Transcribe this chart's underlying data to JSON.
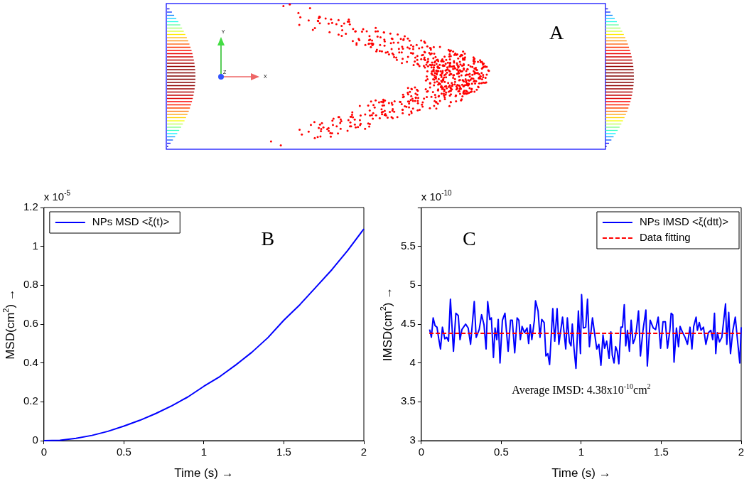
{
  "chart_data": [
    {
      "type": "other",
      "annotations": [
        "A",
        "Y",
        "X",
        "Z"
      ]
    },
    {
      "type": "line",
      "xlabel": "Time (s) →",
      "ylabel": "MSD(cm$^{2}$) →",
      "annotations": [
        "x 10$^{-5}$",
        "B"
      ],
      "xlim": [
        0,
        2
      ],
      "xticks": [
        0,
        0.5,
        1,
        1.5,
        2
      ],
      "ylim": [
        0,
        1.2
      ],
      "yticks": [
        0,
        0.2,
        0.4,
        0.6,
        0.8,
        1,
        1.2
      ],
      "grid": false,
      "legend": "top left",
      "marker": "none",
      "series": [
        {
          "name": "NPs MSD <ξ(t)>",
          "color": "#0000ff",
          "line_style": "solid",
          "x": [
            0,
            0.1,
            0.2,
            0.3,
            0.4,
            0.5,
            0.6,
            0.7,
            0.8,
            0.9,
            1,
            1.1,
            1.2,
            1.3,
            1.4,
            1.5,
            1.6,
            1.7,
            1.8,
            1.9,
            2
          ],
          "values": [
            0,
            0.002,
            0.012,
            0.027,
            0.048,
            0.075,
            0.105,
            0.14,
            0.18,
            0.225,
            0.28,
            0.33,
            0.39,
            0.455,
            0.53,
            0.62,
            0.7,
            0.79,
            0.88,
            0.98,
            1.09
          ]
        }
      ]
    },
    {
      "type": "line",
      "xlabel": "Time (s) →",
      "ylabel": "IMSD(cm$^{2}$) →",
      "annotations": [
        "x 10$^{-10}$",
        "C",
        "Average IMSD: 4.38x10$^{-10}$cm$^{2}$"
      ],
      "xlim": [
        0,
        2
      ],
      "xticks": [
        0,
        0.5,
        1,
        1.5,
        2
      ],
      "ylim": [
        3,
        6
      ],
      "yticks": [
        3,
        3.5,
        4,
        4.5,
        5,
        5.5,
        {
          "value": 6,
          "label": null
        }
      ],
      "grid": false,
      "legend": "top right",
      "marker": "none",
      "series": [
        {
          "name": "NPs IMSD <ξ(dtt)>",
          "color": "#0000ff",
          "line_style": "solid",
          "x": [
            0.052,
            0.063,
            0.074,
            0.086,
            0.098,
            0.109,
            0.12,
            0.132,
            0.147,
            0.159,
            0.17,
            0.182,
            0.201,
            0.216,
            0.231,
            0.242,
            0.254,
            0.277,
            0.293,
            0.308,
            0.331,
            0.343,
            0.362,
            0.377,
            0.392,
            0.405,
            0.415,
            0.428,
            0.438,
            0.451,
            0.461,
            0.472,
            0.481,
            0.492,
            0.507,
            0.523,
            0.543,
            0.558,
            0.569,
            0.584,
            0.599,
            0.61,
            0.619,
            0.63,
            0.645,
            0.661,
            0.671,
            0.681,
            0.691,
            0.707,
            0.714,
            0.73,
            0.742,
            0.753,
            0.768,
            0.779,
            0.791,
            0.802,
            0.822,
            0.834,
            0.849,
            0.86,
            0.883,
            0.903,
            0.913,
            0.926,
            0.936,
            0.944,
            0.955,
            0.967,
            0.982,
            0.995,
            1.002,
            1.013,
            1.028,
            1.039,
            1.051,
            1.07,
            1.082,
            1.097,
            1.11,
            1.123,
            1.136,
            1.146,
            1.159,
            1.174,
            1.185,
            1.194,
            1.205,
            1.215,
            1.225,
            1.235,
            1.248,
            1.258,
            1.269,
            1.278,
            1.289,
            1.301,
            1.312,
            1.324,
            1.335,
            1.343,
            1.358,
            1.37,
            1.386,
            1.404,
            1.413,
            1.431,
            1.45,
            1.465,
            1.481,
            1.496,
            1.511,
            1.526,
            1.539,
            1.554,
            1.562,
            1.572,
            1.58,
            1.595,
            1.608,
            1.618,
            1.634,
            1.649,
            1.664,
            1.68,
            1.692,
            1.703,
            1.718,
            1.726,
            1.738,
            1.749,
            1.764,
            1.779,
            1.795,
            1.81,
            1.822,
            1.833,
            1.841,
            1.851,
            1.864,
            1.879,
            1.902,
            1.91,
            1.922,
            1.933,
            1.948,
            1.963,
            1.976,
            1.991,
            2.0
          ],
          "values": [
            4.43,
            4.33,
            4.58,
            4.48,
            4.46,
            4.31,
            4.18,
            4.46,
            4.31,
            4.33,
            4.28,
            4.82,
            4.15,
            4.64,
            4.61,
            4.3,
            4.43,
            4.5,
            4.45,
            4.24,
            4.79,
            4.33,
            4.43,
            4.62,
            4.49,
            4.18,
            4.79,
            4.56,
            4.58,
            4.07,
            4.45,
            4.3,
            4.56,
            4.0,
            4.55,
            4.64,
            4.15,
            4.55,
            4.55,
            4.13,
            4.58,
            4.55,
            4.3,
            4.47,
            4.39,
            4.45,
            4.25,
            4.49,
            4.3,
            4.55,
            4.8,
            4.67,
            4.33,
            4.56,
            4.52,
            4.09,
            4.12,
            3.98,
            4.7,
            4.28,
            4.7,
            4.24,
            4.59,
            4.18,
            4.58,
            4.27,
            4.22,
            4.5,
            4.18,
            3.93,
            4.67,
            4.12,
            4.88,
            4.45,
            4.46,
            4.82,
            4.21,
            4.58,
            4.4,
            4.18,
            4.24,
            3.97,
            4.36,
            4.19,
            4.28,
            4.06,
            4.4,
            4.1,
            4.0,
            4.21,
            4.15,
            3.99,
            4.46,
            4.46,
            4.75,
            4.22,
            4.42,
            4.15,
            4.55,
            4.25,
            4.31,
            4.39,
            4.67,
            4.09,
            4.42,
            4.68,
            3.96,
            4.55,
            4.45,
            4.43,
            4.59,
            4.19,
            4.53,
            4.53,
            4.19,
            4.42,
            4.64,
            4.62,
            4.01,
            4.45,
            4.21,
            4.47,
            4.39,
            4.33,
            4.24,
            4.46,
            4.18,
            4.47,
            4.59,
            4.42,
            4.52,
            4.42,
            4.46,
            4.24,
            4.39,
            4.42,
            4.3,
            4.64,
            4.12,
            4.39,
            4.27,
            4.33,
            4.76,
            4.24,
            4.65,
            4.12,
            4.42,
            4.59,
            4.31,
            4.0,
            4.46
          ]
        },
        {
          "name": "Data fitting",
          "color": "#ff0000",
          "line_style": "dashed",
          "x": [
            0.05,
            2
          ],
          "values": [
            4.38,
            4.38
          ]
        }
      ]
    }
  ]
}
